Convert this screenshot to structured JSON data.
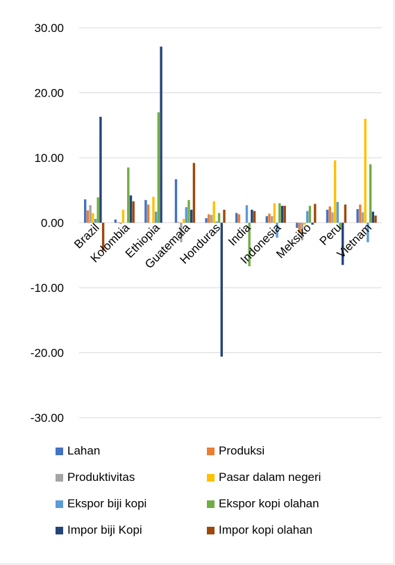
{
  "chart_data": {
    "type": "bar",
    "categories": [
      "Brazil",
      "Kolombia",
      "Ethiopia",
      "Guatemala",
      "Honduras",
      "India",
      "Indonesia",
      "Meksiko",
      "Peru",
      "Vietnam"
    ],
    "series": [
      {
        "name": "Lahan",
        "color": "#4472C4",
        "values": [
          3.6,
          0.5,
          3.5,
          6.7,
          0.7,
          1.5,
          1.0,
          -0.8,
          2.0,
          2.1
        ]
      },
      {
        "name": "Produksi",
        "color": "#ED7D31",
        "values": [
          1.9,
          0.1,
          2.8,
          0.1,
          1.3,
          1.3,
          1.4,
          -1.6,
          2.5,
          2.8
        ]
      },
      {
        "name": "Produktivitas",
        "color": "#A5A5A5",
        "values": [
          2.7,
          -0.2,
          0.0,
          -3.0,
          1.2,
          0.0,
          1.0,
          -2.7,
          1.6,
          1.6
        ]
      },
      {
        "name": "Pasar dalam negeri",
        "color": "#FFC000",
        "values": [
          1.5,
          2.0,
          4.0,
          0.6,
          3.3,
          0.0,
          3.0,
          -0.3,
          9.6,
          16.0
        ]
      },
      {
        "name": "Ekspor biji kopi",
        "color": "#5B9BD5",
        "values": [
          0.6,
          0.0,
          1.7,
          2.4,
          0.2,
          2.7,
          -2.3,
          1.8,
          3.2,
          -3.0
        ]
      },
      {
        "name": "Ekspor kopi olahan",
        "color": "#70AD47",
        "values": [
          3.9,
          8.5,
          17.0,
          3.5,
          1.5,
          -6.7,
          3.0,
          2.6,
          -0.9,
          9.0
        ]
      },
      {
        "name": "Impor biji Kopi",
        "color": "#264478",
        "values": [
          16.3,
          4.2,
          27.1,
          2.0,
          -20.6,
          2.0,
          2.6,
          -0.3,
          -6.5,
          1.7
        ]
      },
      {
        "name": "Impor kopi olahan",
        "color": "#9E480E",
        "values": [
          -4.3,
          3.3,
          0.0,
          9.2,
          2.0,
          1.8,
          2.6,
          2.9,
          2.8,
          1.1
        ]
      }
    ],
    "yticks": [
      "30.00",
      "20.00",
      "10.00",
      "0.00",
      "-10.00",
      "-20.00",
      "-30.00"
    ],
    "ylim": [
      -30,
      30
    ],
    "grid": true,
    "legend_position": "bottom"
  }
}
